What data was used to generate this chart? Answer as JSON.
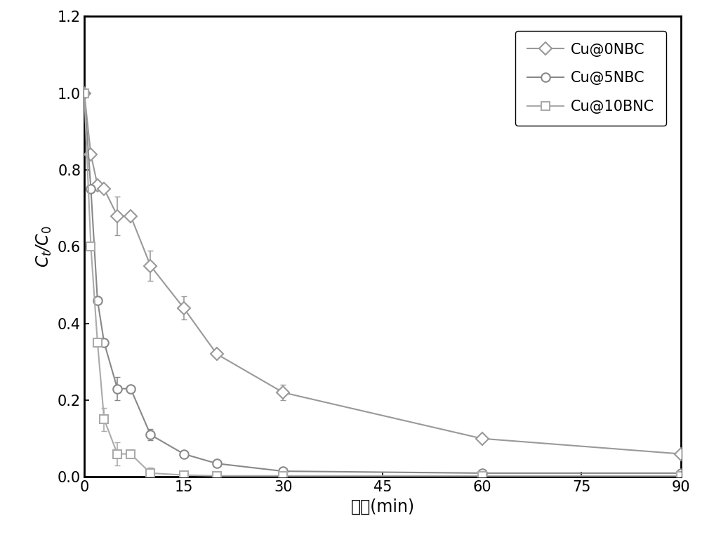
{
  "series": [
    {
      "label": "Cu@0NBC",
      "marker": "D",
      "color": "#999999",
      "x": [
        0,
        1,
        2,
        3,
        5,
        7,
        10,
        15,
        20,
        30,
        60,
        90
      ],
      "y": [
        1.0,
        0.84,
        0.76,
        0.75,
        0.68,
        0.68,
        0.55,
        0.44,
        0.32,
        0.22,
        0.1,
        0.06
      ],
      "yerr": [
        0.0,
        0.0,
        0.0,
        0.0,
        0.05,
        0.0,
        0.04,
        0.03,
        0.0,
        0.02,
        0.0,
        0.0
      ]
    },
    {
      "label": "Cu@5NBC",
      "marker": "o",
      "color": "#888888",
      "x": [
        0,
        1,
        2,
        3,
        5,
        7,
        10,
        15,
        20,
        30,
        60,
        90
      ],
      "y": [
        1.0,
        0.75,
        0.46,
        0.35,
        0.23,
        0.23,
        0.11,
        0.06,
        0.035,
        0.015,
        0.01,
        0.01
      ],
      "yerr": [
        0.0,
        0.0,
        0.0,
        0.0,
        0.03,
        0.0,
        0.015,
        0.0,
        0.0,
        0.0,
        0.0,
        0.0
      ]
    },
    {
      "label": "Cu@10BNC",
      "marker": "s",
      "color": "#aaaaaa",
      "x": [
        0,
        1,
        2,
        3,
        5,
        7,
        10,
        15,
        20,
        30,
        60,
        90
      ],
      "y": [
        1.0,
        0.6,
        0.35,
        0.15,
        0.06,
        0.06,
        0.01,
        0.005,
        0.003,
        0.003,
        0.003,
        0.003
      ],
      "yerr": [
        0.0,
        0.0,
        0.0,
        0.03,
        0.03,
        0.0,
        0.015,
        0.0,
        0.0,
        0.0,
        0.0,
        0.0
      ]
    }
  ],
  "xlabel": "时间(min)",
  "ylabel": "$C_t$/$C_0$",
  "xlim": [
    0,
    90
  ],
  "ylim": [
    0,
    1.2
  ],
  "xticks": [
    0,
    15,
    30,
    45,
    60,
    75,
    90
  ],
  "yticks": [
    0,
    0.2,
    0.4,
    0.6,
    0.8,
    1.0,
    1.2
  ],
  "line_width": 1.5,
  "marker_size": 9,
  "legend_fontsize": 15,
  "axis_fontsize": 17,
  "tick_fontsize": 15
}
